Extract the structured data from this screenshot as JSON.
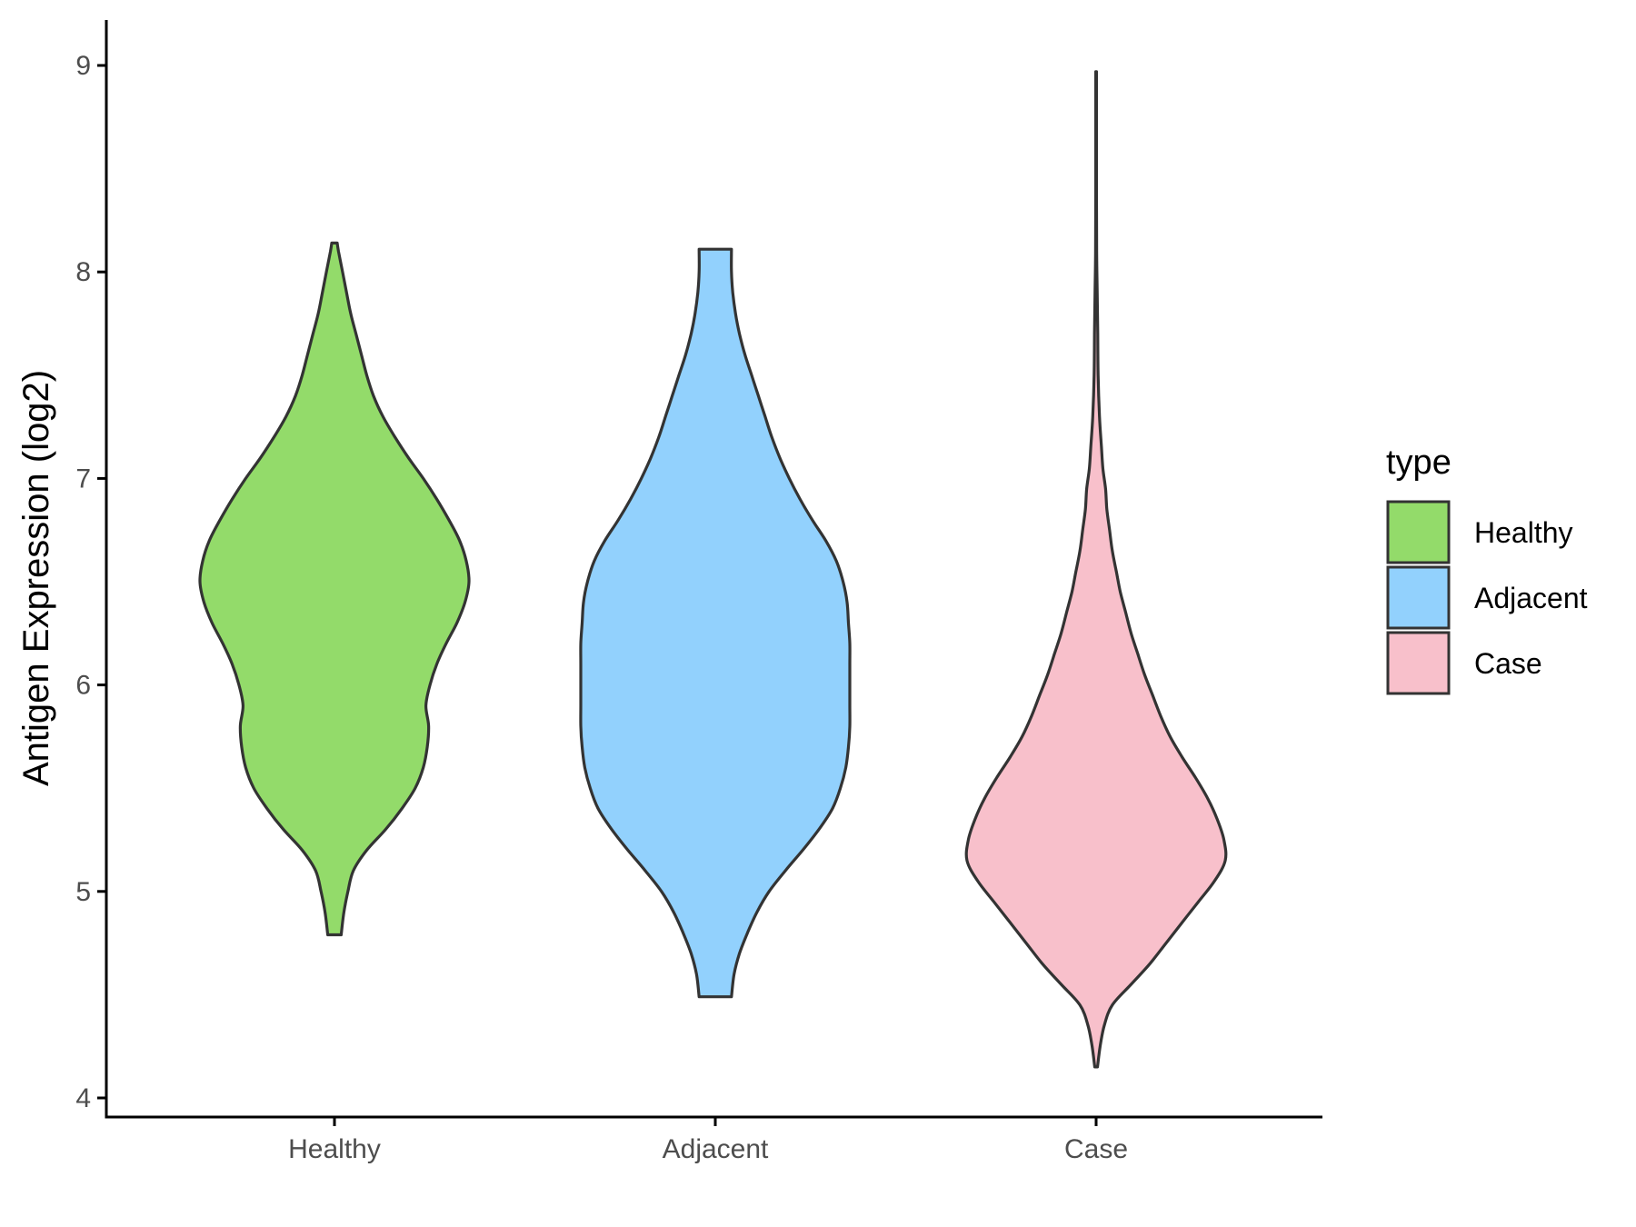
{
  "chart_data": {
    "type": "violin",
    "ylabel": "Antigen Expression (log2)",
    "xlabel": "",
    "ylim": [
      4,
      9
    ],
    "y_ticks": [
      4,
      5,
      6,
      7,
      8,
      9
    ],
    "categories": [
      "Healthy",
      "Adjacent",
      "Case"
    ],
    "grid": false,
    "legend": {
      "title": "type",
      "placement": "right"
    },
    "series": [
      {
        "name": "Healthy",
        "color": "#93DB6A",
        "min": 4.79,
        "max": 8.14,
        "density_profile": [
          [
            4.79,
            0.05
          ],
          [
            4.9,
            0.07
          ],
          [
            5.0,
            0.1
          ],
          [
            5.1,
            0.14
          ],
          [
            5.2,
            0.24
          ],
          [
            5.3,
            0.38
          ],
          [
            5.4,
            0.5
          ],
          [
            5.5,
            0.6
          ],
          [
            5.6,
            0.66
          ],
          [
            5.7,
            0.69
          ],
          [
            5.8,
            0.7
          ],
          [
            5.9,
            0.68
          ],
          [
            6.0,
            0.71
          ],
          [
            6.1,
            0.76
          ],
          [
            6.2,
            0.83
          ],
          [
            6.3,
            0.91
          ],
          [
            6.4,
            0.97
          ],
          [
            6.5,
            1.0
          ],
          [
            6.6,
            0.98
          ],
          [
            6.7,
            0.93
          ],
          [
            6.8,
            0.85
          ],
          [
            6.9,
            0.76
          ],
          [
            7.0,
            0.66
          ],
          [
            7.1,
            0.55
          ],
          [
            7.2,
            0.45
          ],
          [
            7.3,
            0.36
          ],
          [
            7.4,
            0.29
          ],
          [
            7.5,
            0.24
          ],
          [
            7.6,
            0.2
          ],
          [
            7.7,
            0.16
          ],
          [
            7.8,
            0.12
          ],
          [
            7.9,
            0.09
          ],
          [
            8.0,
            0.06
          ],
          [
            8.1,
            0.03
          ],
          [
            8.14,
            0.02
          ]
        ]
      },
      {
        "name": "Adjacent",
        "color": "#92D1FD",
        "min": 4.49,
        "max": 8.11,
        "density_profile": [
          [
            4.49,
            0.12
          ],
          [
            4.6,
            0.14
          ],
          [
            4.7,
            0.18
          ],
          [
            4.8,
            0.24
          ],
          [
            4.9,
            0.31
          ],
          [
            5.0,
            0.4
          ],
          [
            5.1,
            0.52
          ],
          [
            5.2,
            0.65
          ],
          [
            5.3,
            0.77
          ],
          [
            5.4,
            0.87
          ],
          [
            5.5,
            0.93
          ],
          [
            5.6,
            0.97
          ],
          [
            5.7,
            0.99
          ],
          [
            5.8,
            1.0
          ],
          [
            5.9,
            1.0
          ],
          [
            6.0,
            1.0
          ],
          [
            6.1,
            1.0
          ],
          [
            6.2,
            1.0
          ],
          [
            6.3,
            0.99
          ],
          [
            6.4,
            0.98
          ],
          [
            6.5,
            0.95
          ],
          [
            6.6,
            0.9
          ],
          [
            6.7,
            0.82
          ],
          [
            6.8,
            0.72
          ],
          [
            6.9,
            0.63
          ],
          [
            7.0,
            0.55
          ],
          [
            7.1,
            0.48
          ],
          [
            7.2,
            0.42
          ],
          [
            7.3,
            0.37
          ],
          [
            7.4,
            0.32
          ],
          [
            7.5,
            0.27
          ],
          [
            7.6,
            0.22
          ],
          [
            7.7,
            0.18
          ],
          [
            7.8,
            0.15
          ],
          [
            7.9,
            0.13
          ],
          [
            8.0,
            0.12
          ],
          [
            8.11,
            0.12
          ]
        ]
      },
      {
        "name": "Case",
        "color": "#F8C0CB",
        "min": 4.15,
        "max": 8.97,
        "density_profile": [
          [
            4.15,
            0.01
          ],
          [
            4.25,
            0.03
          ],
          [
            4.35,
            0.06
          ],
          [
            4.45,
            0.12
          ],
          [
            4.55,
            0.26
          ],
          [
            4.65,
            0.4
          ],
          [
            4.75,
            0.52
          ],
          [
            4.85,
            0.64
          ],
          [
            4.95,
            0.76
          ],
          [
            5.05,
            0.88
          ],
          [
            5.15,
            0.96
          ],
          [
            5.25,
            0.95
          ],
          [
            5.35,
            0.9
          ],
          [
            5.45,
            0.83
          ],
          [
            5.55,
            0.74
          ],
          [
            5.65,
            0.64
          ],
          [
            5.75,
            0.55
          ],
          [
            5.85,
            0.48
          ],
          [
            5.95,
            0.42
          ],
          [
            6.05,
            0.36
          ],
          [
            6.15,
            0.31
          ],
          [
            6.25,
            0.26
          ],
          [
            6.35,
            0.22
          ],
          [
            6.45,
            0.18
          ],
          [
            6.55,
            0.15
          ],
          [
            6.65,
            0.12
          ],
          [
            6.75,
            0.1
          ],
          [
            6.85,
            0.08
          ],
          [
            6.95,
            0.07
          ],
          [
            7.05,
            0.05
          ],
          [
            7.15,
            0.04
          ],
          [
            7.3,
            0.025
          ],
          [
            7.5,
            0.015
          ],
          [
            7.7,
            0.012
          ],
          [
            7.9,
            0.008
          ],
          [
            8.1,
            0.004
          ],
          [
            8.4,
            0.003
          ],
          [
            8.7,
            0.003
          ],
          [
            8.97,
            0.003
          ]
        ]
      }
    ]
  },
  "colors": {
    "outline": "#333333",
    "axis": "#000000",
    "tick_text": "#4d4d4d"
  }
}
